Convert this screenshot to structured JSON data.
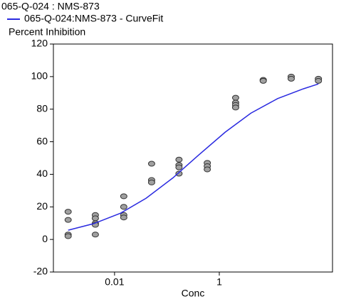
{
  "chart_data": {
    "type": "scatter",
    "title": "065-Q-024  : NMS-873",
    "y_label": "Percent Inhibition",
    "x_label": "Conc",
    "xscale": "log",
    "xlim": [
      0.00068,
      145
    ],
    "xticks": [
      0.01,
      1
    ],
    "ylim": [
      -20,
      120
    ],
    "yticks": [
      -20,
      0,
      20,
      40,
      60,
      80,
      100,
      120
    ],
    "series": [
      {
        "mode": "markers",
        "color": "#a0a0a0",
        "x": [
          0.0013,
          0.0013,
          0.0013,
          0.0013,
          0.0043,
          0.0043,
          0.0043,
          0.0043,
          0.0043,
          0.015,
          0.015,
          0.015,
          0.015,
          0.051,
          0.051,
          0.051,
          0.17,
          0.17,
          0.17,
          0.17,
          0.59,
          0.59,
          0.59,
          2.05,
          2.05,
          2.05,
          2.05,
          6.9,
          6.9,
          23.6,
          23.6,
          78,
          78
        ],
        "values": [
          17,
          12,
          3,
          2,
          15,
          13,
          10,
          9,
          3,
          26.5,
          20,
          15,
          13.5,
          46.5,
          36.5,
          35,
          49,
          45.7,
          44.3,
          40.4,
          47,
          45,
          43,
          87,
          84,
          82.6,
          81,
          98,
          97.4,
          100,
          98.7,
          98.7,
          97.4
        ]
      },
      {
        "mode": "lines",
        "name": "065-Q-024:NMS-873 - CurveFit",
        "color": "#2a2ae0",
        "x": [
          0.0013,
          0.004,
          0.013,
          0.04,
          0.13,
          0.4,
          1.3,
          4,
          13,
          40,
          78
        ],
        "values": [
          5.7,
          9.7,
          16.1,
          25.3,
          37.8,
          51.7,
          65.9,
          77.5,
          86.5,
          92.5,
          95.5
        ]
      }
    ]
  }
}
